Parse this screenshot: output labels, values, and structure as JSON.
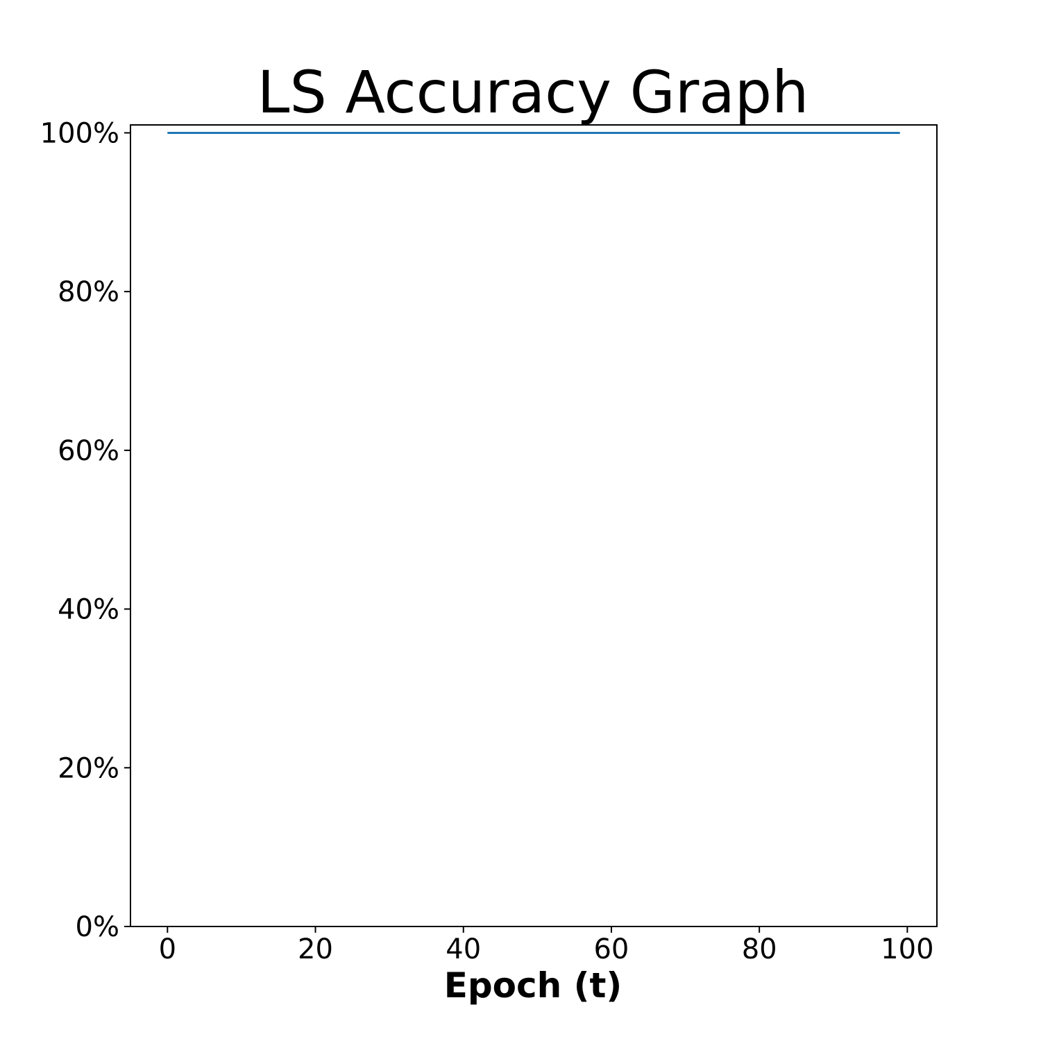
{
  "chart_data": {
    "type": "line",
    "title": "LS Accuracy Graph",
    "xlabel": "Epoch (t)",
    "ylabel": "",
    "xlim": [
      -5,
      104
    ],
    "ylim": [
      0,
      1.01
    ],
    "x_ticks": [
      0,
      20,
      40,
      60,
      80,
      100
    ],
    "x_tick_labels": [
      "0",
      "20",
      "40",
      "60",
      "80",
      "100"
    ],
    "y_ticks": [
      0,
      0.2,
      0.4,
      0.6,
      0.8,
      1.0
    ],
    "y_tick_labels": [
      "0%",
      "20%",
      "40%",
      "60%",
      "80%",
      "100%"
    ],
    "grid": false,
    "legend": "none",
    "series": [
      {
        "color": "#1f77b4",
        "x": [
          0,
          99
        ],
        "y": [
          1.0,
          1.0
        ]
      }
    ]
  }
}
